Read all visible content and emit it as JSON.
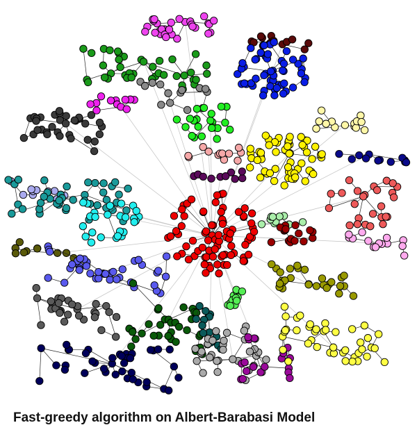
{
  "caption": "Fast-greedy algorithm on Albert-Barabasi Model",
  "node_style": {
    "outline": "#000000",
    "edge_color": "#222222",
    "inter_edge_color": "#c8c8c8"
  },
  "communities": [
    {
      "name": "community-violet",
      "color": "#ee44ee"
    },
    {
      "name": "community-green",
      "color": "#1a9a1a"
    },
    {
      "name": "community-maroon",
      "color": "#5a0a0a"
    },
    {
      "name": "community-blue",
      "color": "#0a1ee6"
    },
    {
      "name": "community-dark-gray",
      "color": "#3a3a3a"
    },
    {
      "name": "community-magenta",
      "color": "#ee22ee"
    },
    {
      "name": "community-gray",
      "color": "#8a8a8a"
    },
    {
      "name": "community-lime",
      "color": "#22ee22"
    },
    {
      "name": "community-light-yellow",
      "color": "#fff7a8"
    },
    {
      "name": "community-yellow",
      "color": "#fff200"
    },
    {
      "name": "community-navy",
      "color": "#0a0a8a"
    },
    {
      "name": "community-pink",
      "color": "#f6a8a8"
    },
    {
      "name": "community-purple",
      "color": "#5a0a5a"
    },
    {
      "name": "community-lavender",
      "color": "#aaaaee"
    },
    {
      "name": "community-teal",
      "color": "#1a9a9a"
    },
    {
      "name": "community-cyan",
      "color": "#22eeee"
    },
    {
      "name": "community-red",
      "color": "#ee0000"
    },
    {
      "name": "community-salmon",
      "color": "#ee5a5a"
    },
    {
      "name": "community-light-green",
      "color": "#aaeeaa"
    },
    {
      "name": "community-dark-red",
      "color": "#9a0000"
    },
    {
      "name": "community-light-pink",
      "color": "#ffaaee"
    },
    {
      "name": "community-olive",
      "color": "#5a5a0a"
    },
    {
      "name": "community-periwinkle",
      "color": "#5a5aee"
    },
    {
      "name": "community-mustard",
      "color": "#9a9a00"
    },
    {
      "name": "community-charcoal",
      "color": "#5a5a5a"
    },
    {
      "name": "community-dark-green",
      "color": "#0a5a0a"
    },
    {
      "name": "community-dark-teal",
      "color": "#0a5a5a"
    },
    {
      "name": "community-bright-green",
      "color": "#55ee55"
    },
    {
      "name": "community-silver",
      "color": "#aaaaaa"
    },
    {
      "name": "community-dark-magenta",
      "color": "#9a0a9a"
    },
    {
      "name": "community-gold",
      "color": "#ffff44"
    },
    {
      "name": "community-midnight",
      "color": "#00005a"
    }
  ]
}
